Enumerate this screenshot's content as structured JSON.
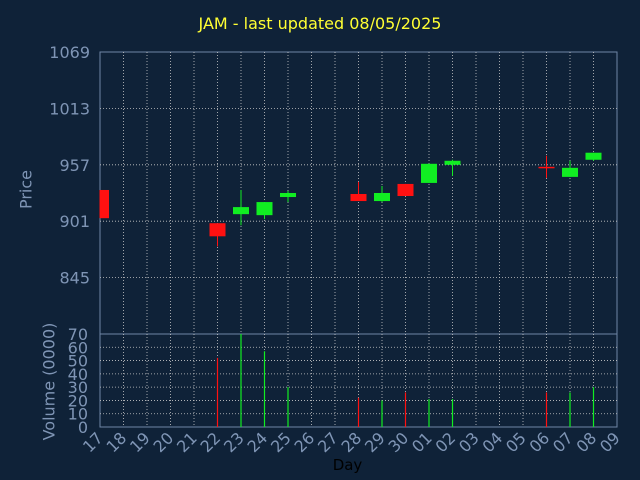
{
  "title": "JAM - last updated 08/05/2025",
  "colors": {
    "background": "#0f2238",
    "title": "#ffff33",
    "axis_text": "#7f95b5",
    "up": "#11ee22",
    "down": "#ff1111",
    "grid": "#c8c8c8",
    "frame": "#6f86a6"
  },
  "chart_data": [
    {
      "type": "candlestick",
      "ylabel": "Price",
      "ylim": [
        789,
        1069
      ],
      "yticks": [
        845,
        901,
        957,
        1013,
        1069
      ],
      "grid": true,
      "x": [
        "17",
        "18",
        "19",
        "20",
        "21",
        "22",
        "23",
        "24",
        "25",
        "26",
        "27",
        "28",
        "29",
        "30",
        "01",
        "02",
        "03",
        "04",
        "05",
        "06",
        "07",
        "08",
        "09"
      ],
      "candles": [
        {
          "day": "17",
          "open": 932,
          "close": 904,
          "high": 932,
          "low": 904
        },
        {
          "day": "22",
          "open": 899,
          "close": 886,
          "high": 899,
          "low": 876
        },
        {
          "day": "23",
          "open": 908,
          "close": 915,
          "high": 932,
          "low": 897
        },
        {
          "day": "24",
          "open": 907,
          "close": 920,
          "high": 920,
          "low": 903
        },
        {
          "day": "25",
          "open": 925,
          "close": 929,
          "high": 931,
          "low": 920
        },
        {
          "day": "28",
          "open": 928,
          "close": 921,
          "high": 940,
          "low": 921
        },
        {
          "day": "29",
          "open": 921,
          "close": 929,
          "high": 936,
          "low": 920
        },
        {
          "day": "30",
          "open": 938,
          "close": 926,
          "high": 938,
          "low": 926
        },
        {
          "day": "01",
          "open": 939,
          "close": 958,
          "high": 958,
          "low": 939
        },
        {
          "day": "02",
          "open": 957,
          "close": 961,
          "high": 962,
          "low": 946
        },
        {
          "day": "06",
          "open": 955,
          "close": 954,
          "high": 966,
          "low": 944
        },
        {
          "day": "07",
          "open": 945,
          "close": 954,
          "high": 961,
          "low": 945
        },
        {
          "day": "08",
          "open": 962,
          "close": 969,
          "high": 969,
          "low": 961
        }
      ]
    },
    {
      "type": "bar",
      "ylabel": "Volume (0000)",
      "xlabel": "Day",
      "ylim": [
        0,
        70
      ],
      "yticks": [
        0,
        10,
        20,
        30,
        40,
        50,
        60,
        70
      ],
      "grid": true,
      "x": [
        "17",
        "18",
        "19",
        "20",
        "21",
        "22",
        "23",
        "24",
        "25",
        "26",
        "27",
        "28",
        "29",
        "30",
        "01",
        "02",
        "03",
        "04",
        "05",
        "06",
        "07",
        "08",
        "09"
      ],
      "bars": [
        {
          "day": "22",
          "value": 52,
          "dir": "down"
        },
        {
          "day": "23",
          "value": 70,
          "dir": "up"
        },
        {
          "day": "24",
          "value": 57,
          "dir": "up"
        },
        {
          "day": "25",
          "value": 30,
          "dir": "up"
        },
        {
          "day": "28",
          "value": 22,
          "dir": "down"
        },
        {
          "day": "29",
          "value": 20,
          "dir": "up"
        },
        {
          "day": "30",
          "value": 26,
          "dir": "down"
        },
        {
          "day": "01",
          "value": 21,
          "dir": "up"
        },
        {
          "day": "02",
          "value": 21,
          "dir": "up"
        },
        {
          "day": "06",
          "value": 26,
          "dir": "down"
        },
        {
          "day": "07",
          "value": 26,
          "dir": "up"
        },
        {
          "day": "08",
          "value": 30,
          "dir": "up"
        }
      ]
    }
  ]
}
